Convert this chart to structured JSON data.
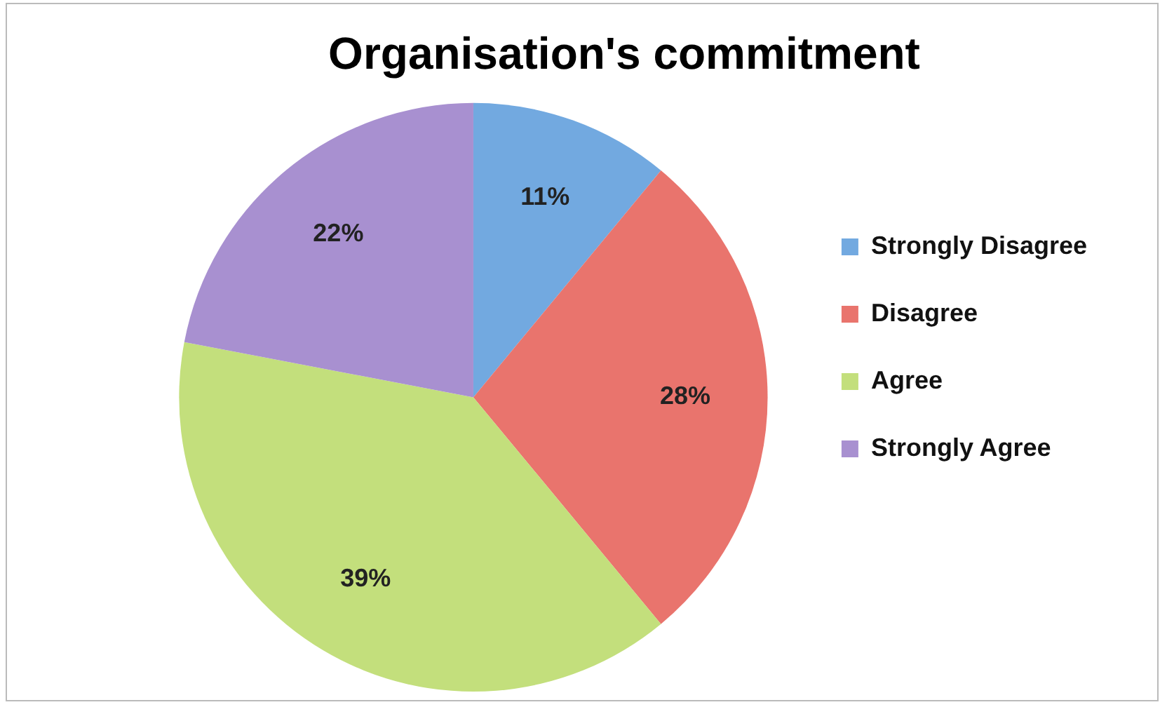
{
  "chart_data": {
    "type": "pie",
    "title": "Organisation's commitment",
    "categories": [
      "Strongly Disagree",
      "Disagree",
      "Agree",
      "Strongly Agree"
    ],
    "values": [
      11,
      28,
      39,
      22
    ],
    "colors": [
      "#72a9e0",
      "#e9746d",
      "#c3df7c",
      "#a890d0"
    ],
    "value_labels": [
      "11%",
      "28%",
      "39%",
      "22%"
    ],
    "legend": "right"
  }
}
